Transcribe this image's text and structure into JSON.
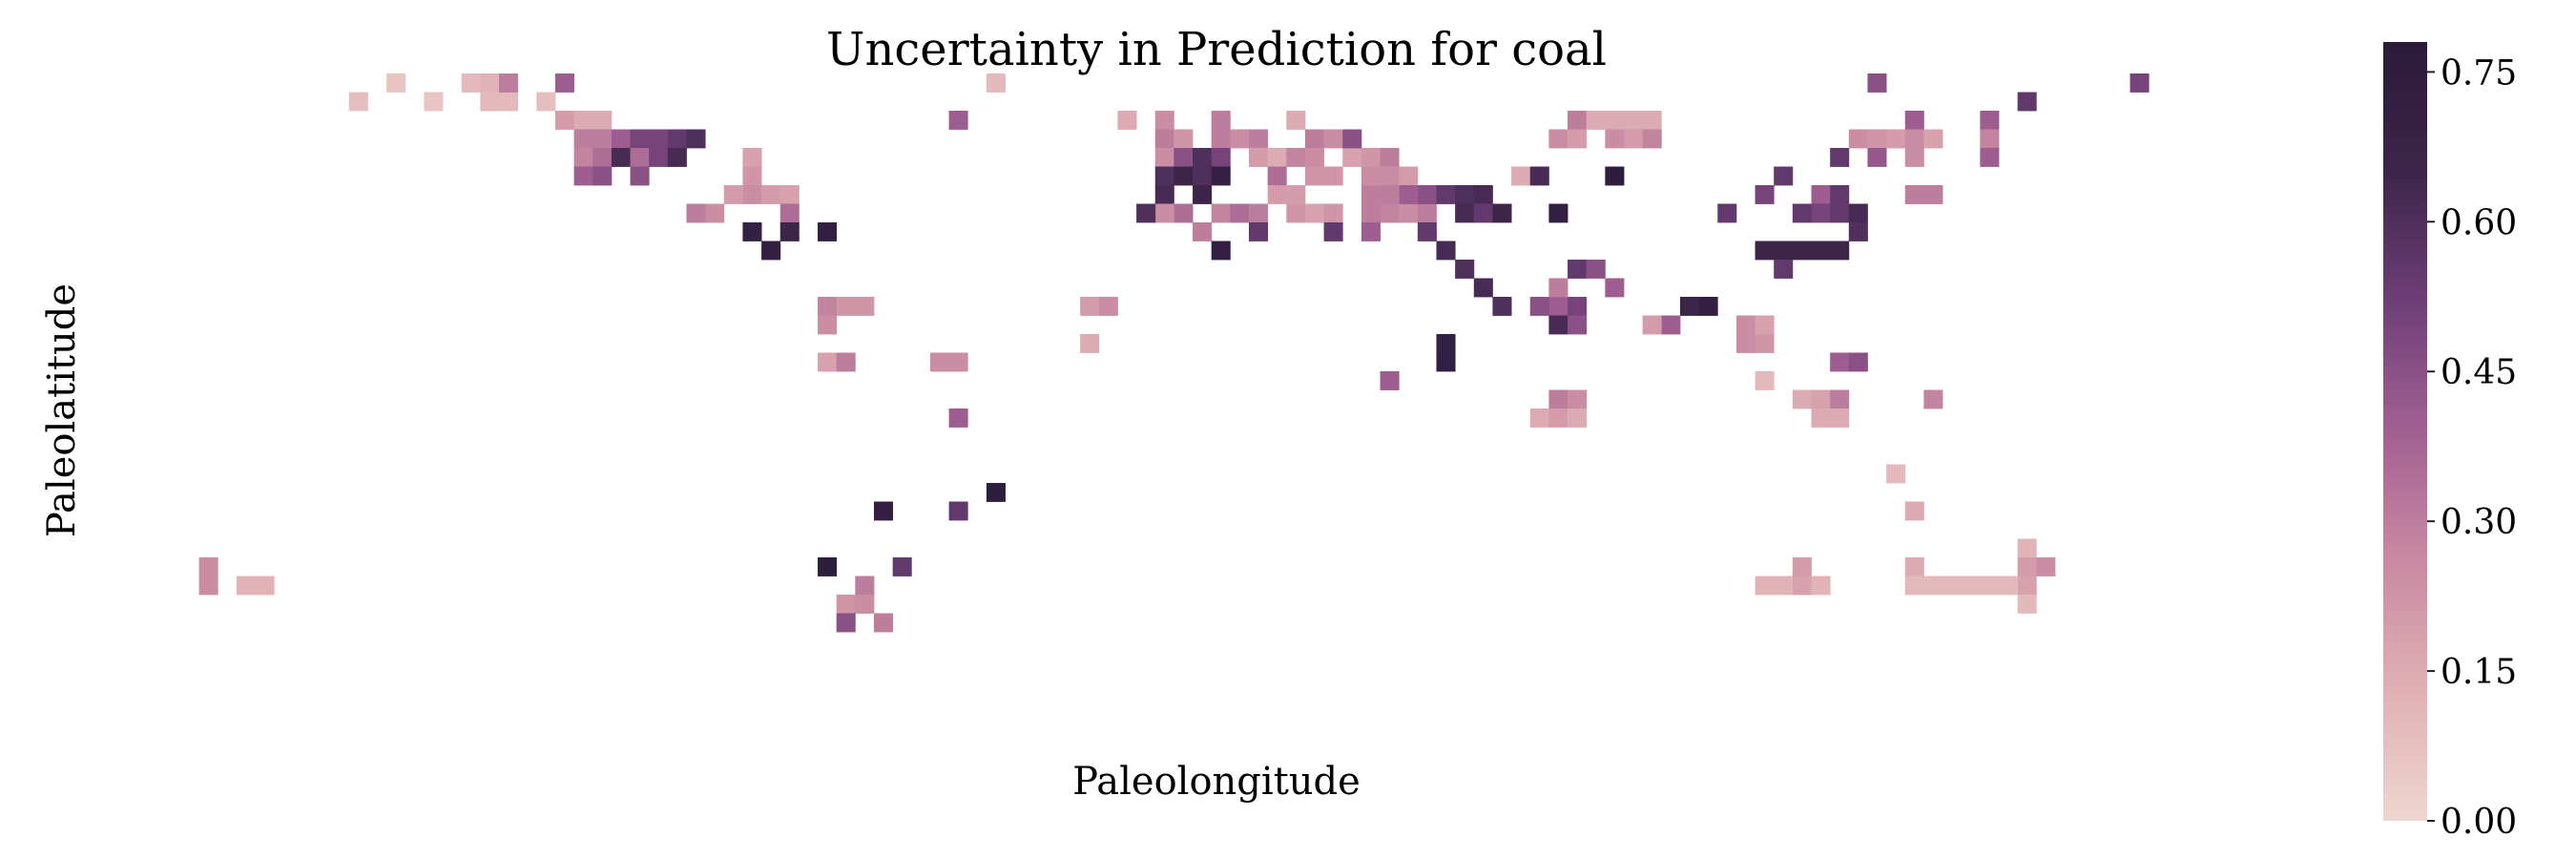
{
  "chart_data": {
    "type": "heatmap",
    "title": "Uncertainty in Prediction for coal",
    "xlabel": "Paleolongitude",
    "ylabel": "Paleolatitude",
    "grid": false,
    "cell_grid": {
      "columns": 120,
      "rows": 37
    },
    "colorbar": {
      "range": [
        0.0,
        0.78
      ],
      "ticks": [
        0.0,
        0.15,
        0.3,
        0.45,
        0.6,
        0.75
      ],
      "tick_labels": [
        "0.00",
        "0.15",
        "0.30",
        "0.45",
        "0.60",
        "0.75"
      ],
      "colors": [
        "#EED6CE",
        "#E0B0B5",
        "#C98AA2",
        "#A26092",
        "#6E3F77",
        "#3C2549",
        "#2B1A3A"
      ]
    },
    "cells": [
      [
        12,
        1,
        0.08
      ],
      [
        14,
        0,
        0.06
      ],
      [
        16,
        1,
        0.06
      ],
      [
        18,
        0,
        0.1
      ],
      [
        19,
        0,
        0.12
      ],
      [
        19,
        1,
        0.1
      ],
      [
        20,
        1,
        0.1
      ],
      [
        20,
        0,
        0.3
      ],
      [
        22,
        1,
        0.08
      ],
      [
        23,
        0,
        0.4
      ],
      [
        23,
        2,
        0.2
      ],
      [
        24,
        2,
        0.15
      ],
      [
        24,
        3,
        0.3
      ],
      [
        24,
        4,
        0.28
      ],
      [
        25,
        2,
        0.15
      ],
      [
        25,
        3,
        0.3
      ],
      [
        25,
        4,
        0.35
      ],
      [
        26,
        3,
        0.4
      ],
      [
        26,
        4,
        0.62
      ],
      [
        27,
        3,
        0.5
      ],
      [
        27,
        4,
        0.35
      ],
      [
        27,
        5,
        0.45
      ],
      [
        28,
        3,
        0.5
      ],
      [
        28,
        4,
        0.5
      ],
      [
        29,
        3,
        0.55
      ],
      [
        29,
        4,
        0.62
      ],
      [
        30,
        3,
        0.6
      ],
      [
        24,
        5,
        0.4
      ],
      [
        25,
        5,
        0.45
      ],
      [
        33,
        4,
        0.18
      ],
      [
        33,
        5,
        0.22
      ],
      [
        33,
        6,
        0.25
      ],
      [
        32,
        6,
        0.2
      ],
      [
        31,
        7,
        0.25
      ],
      [
        30,
        7,
        0.3
      ],
      [
        34,
        6,
        0.2
      ],
      [
        35,
        6,
        0.18
      ],
      [
        35,
        7,
        0.35
      ],
      [
        33,
        8,
        0.7
      ],
      [
        34,
        9,
        0.72
      ],
      [
        35,
        8,
        0.65
      ],
      [
        37,
        8,
        0.72
      ],
      [
        44,
        2,
        0.4
      ],
      [
        46,
        0,
        0.1
      ],
      [
        51,
        12,
        0.2
      ],
      [
        52,
        12,
        0.25
      ],
      [
        51,
        14,
        0.15
      ],
      [
        43,
        15,
        0.25
      ],
      [
        44,
        15,
        0.25
      ],
      [
        37,
        12,
        0.28
      ],
      [
        38,
        12,
        0.22
      ],
      [
        39,
        12,
        0.22
      ],
      [
        37,
        13,
        0.25
      ],
      [
        37,
        15,
        0.18
      ],
      [
        38,
        15,
        0.3
      ],
      [
        44,
        18,
        0.4
      ],
      [
        40,
        23,
        0.72
      ],
      [
        44,
        23,
        0.55
      ],
      [
        46,
        22,
        0.75
      ],
      [
        37,
        26,
        0.75
      ],
      [
        41,
        26,
        0.55
      ],
      [
        39,
        27,
        0.3
      ],
      [
        38,
        28,
        0.22
      ],
      [
        39,
        28,
        0.25
      ],
      [
        38,
        29,
        0.45
      ],
      [
        40,
        29,
        0.3
      ],
      [
        53,
        2,
        0.15
      ],
      [
        55,
        2,
        0.25
      ],
      [
        55,
        3,
        0.3
      ],
      [
        56,
        3,
        0.22
      ],
      [
        55,
        4,
        0.25
      ],
      [
        56,
        4,
        0.45
      ],
      [
        57,
        4,
        0.6
      ],
      [
        58,
        2,
        0.3
      ],
      [
        58,
        3,
        0.3
      ],
      [
        58,
        4,
        0.5
      ],
      [
        59,
        3,
        0.25
      ],
      [
        60,
        3,
        0.3
      ],
      [
        60,
        4,
        0.2
      ],
      [
        61,
        4,
        0.15
      ],
      [
        61,
        5,
        0.35
      ],
      [
        55,
        5,
        0.6
      ],
      [
        56,
        5,
        0.65
      ],
      [
        57,
        5,
        0.6
      ],
      [
        58,
        5,
        0.7
      ],
      [
        55,
        6,
        0.62
      ],
      [
        57,
        6,
        0.65
      ],
      [
        61,
        6,
        0.2
      ],
      [
        62,
        4,
        0.28
      ],
      [
        62,
        2,
        0.15
      ],
      [
        63,
        3,
        0.3
      ],
      [
        63,
        4,
        0.25
      ],
      [
        63,
        5,
        0.22
      ],
      [
        64,
        3,
        0.25
      ],
      [
        64,
        5,
        0.22
      ],
      [
        65,
        4,
        0.18
      ],
      [
        66,
        4,
        0.22
      ],
      [
        65,
        3,
        0.45
      ],
      [
        66,
        5,
        0.15
      ],
      [
        66,
        6,
        0.3
      ],
      [
        67,
        4,
        0.3
      ],
      [
        67,
        5,
        0.25
      ],
      [
        68,
        5,
        0.2
      ],
      [
        66,
        7,
        0.3
      ],
      [
        62,
        7,
        0.22
      ],
      [
        62,
        6,
        0.2
      ],
      [
        63,
        7,
        0.18
      ],
      [
        64,
        7,
        0.22
      ],
      [
        66,
        5,
        0.25
      ],
      [
        67,
        7,
        0.28
      ],
      [
        68,
        7,
        0.25
      ],
      [
        69,
        7,
        0.3
      ],
      [
        69,
        6,
        0.45
      ],
      [
        70,
        6,
        0.55
      ],
      [
        71,
        6,
        0.6
      ],
      [
        72,
        6,
        0.62
      ],
      [
        68,
        6,
        0.4
      ],
      [
        67,
        6,
        0.3
      ],
      [
        66,
        8,
        0.4
      ],
      [
        58,
        7,
        0.28
      ],
      [
        57,
        8,
        0.3
      ],
      [
        56,
        7,
        0.35
      ],
      [
        55,
        7,
        0.25
      ],
      [
        54,
        7,
        0.6
      ],
      [
        59,
        7,
        0.35
      ],
      [
        60,
        7,
        0.3
      ],
      [
        60,
        8,
        0.55
      ],
      [
        64,
        8,
        0.55
      ],
      [
        58,
        9,
        0.72
      ],
      [
        69,
        8,
        0.55
      ],
      [
        74,
        5,
        0.15
      ],
      [
        77,
        2,
        0.3
      ],
      [
        76,
        3,
        0.25
      ],
      [
        77,
        3,
        0.2
      ],
      [
        78,
        2,
        0.15
      ],
      [
        79,
        2,
        0.15
      ],
      [
        80,
        2,
        0.15
      ],
      [
        81,
        2,
        0.15
      ],
      [
        79,
        3,
        0.25
      ],
      [
        80,
        3,
        0.2
      ],
      [
        81,
        3,
        0.28
      ],
      [
        75,
        5,
        0.62
      ],
      [
        79,
        5,
        0.75
      ],
      [
        71,
        7,
        0.62
      ],
      [
        72,
        7,
        0.55
      ],
      [
        73,
        7,
        0.65
      ],
      [
        76,
        7,
        0.72
      ],
      [
        70,
        9,
        0.62
      ],
      [
        71,
        10,
        0.6
      ],
      [
        72,
        11,
        0.62
      ],
      [
        73,
        12,
        0.6
      ],
      [
        77,
        10,
        0.55
      ],
      [
        78,
        10,
        0.45
      ],
      [
        76,
        12,
        0.4
      ],
      [
        76,
        13,
        0.62
      ],
      [
        77,
        12,
        0.5
      ],
      [
        77,
        13,
        0.45
      ],
      [
        75,
        12,
        0.45
      ],
      [
        76,
        11,
        0.3
      ],
      [
        79,
        11,
        0.4
      ],
      [
        83,
        12,
        0.65
      ],
      [
        82,
        13,
        0.4
      ],
      [
        81,
        13,
        0.2
      ],
      [
        70,
        14,
        0.7
      ],
      [
        70,
        15,
        0.72
      ],
      [
        67,
        16,
        0.4
      ],
      [
        76,
        17,
        0.3
      ],
      [
        77,
        17,
        0.25
      ],
      [
        75,
        18,
        0.15
      ],
      [
        76,
        18,
        0.2
      ],
      [
        77,
        18,
        0.15
      ],
      [
        93,
        0,
        0.45
      ],
      [
        101,
        1,
        0.55
      ],
      [
        107,
        0,
        0.5
      ],
      [
        95,
        2,
        0.4
      ],
      [
        92,
        3,
        0.25
      ],
      [
        93,
        3,
        0.22
      ],
      [
        94,
        3,
        0.2
      ],
      [
        95,
        3,
        0.25
      ],
      [
        96,
        3,
        0.18
      ],
      [
        99,
        2,
        0.4
      ],
      [
        99,
        3,
        0.28
      ],
      [
        91,
        4,
        0.55
      ],
      [
        93,
        4,
        0.42
      ],
      [
        95,
        4,
        0.25
      ],
      [
        99,
        4,
        0.4
      ],
      [
        88,
        5,
        0.55
      ],
      [
        87,
        6,
        0.5
      ],
      [
        90,
        6,
        0.4
      ],
      [
        91,
        6,
        0.55
      ],
      [
        95,
        6,
        0.3
      ],
      [
        96,
        6,
        0.3
      ],
      [
        85,
        7,
        0.55
      ],
      [
        89,
        7,
        0.55
      ],
      [
        90,
        7,
        0.5
      ],
      [
        91,
        7,
        0.55
      ],
      [
        92,
        7,
        0.62
      ],
      [
        92,
        8,
        0.6
      ],
      [
        87,
        9,
        0.65
      ],
      [
        88,
        9,
        0.65
      ],
      [
        89,
        9,
        0.65
      ],
      [
        90,
        9,
        0.65
      ],
      [
        91,
        9,
        0.65
      ],
      [
        88,
        10,
        0.55
      ],
      [
        84,
        12,
        0.72
      ],
      [
        86,
        13,
        0.25
      ],
      [
        87,
        14,
        0.22
      ],
      [
        87,
        13,
        0.18
      ],
      [
        86,
        14,
        0.25
      ],
      [
        87,
        16,
        0.1
      ],
      [
        91,
        15,
        0.4
      ],
      [
        92,
        15,
        0.45
      ],
      [
        89,
        17,
        0.15
      ],
      [
        90,
        17,
        0.18
      ],
      [
        91,
        17,
        0.3
      ],
      [
        90,
        18,
        0.15
      ],
      [
        91,
        18,
        0.15
      ],
      [
        96,
        17,
        0.28
      ],
      [
        94,
        21,
        0.1
      ],
      [
        95,
        23,
        0.15
      ],
      [
        101,
        25,
        0.12
      ],
      [
        101,
        26,
        0.2
      ],
      [
        102,
        26,
        0.25
      ],
      [
        101,
        27,
        0.18
      ],
      [
        101,
        28,
        0.1
      ],
      [
        87,
        27,
        0.12
      ],
      [
        88,
        27,
        0.12
      ],
      [
        89,
        26,
        0.2
      ],
      [
        89,
        27,
        0.18
      ],
      [
        90,
        27,
        0.12
      ],
      [
        95,
        26,
        0.15
      ],
      [
        95,
        27,
        0.1
      ],
      [
        96,
        27,
        0.1
      ],
      [
        97,
        27,
        0.1
      ],
      [
        98,
        27,
        0.1
      ],
      [
        99,
        27,
        0.1
      ],
      [
        100,
        27,
        0.1
      ],
      [
        4,
        26,
        0.25
      ],
      [
        4,
        27,
        0.25
      ],
      [
        6,
        27,
        0.12
      ],
      [
        7,
        27,
        0.12
      ]
    ]
  }
}
